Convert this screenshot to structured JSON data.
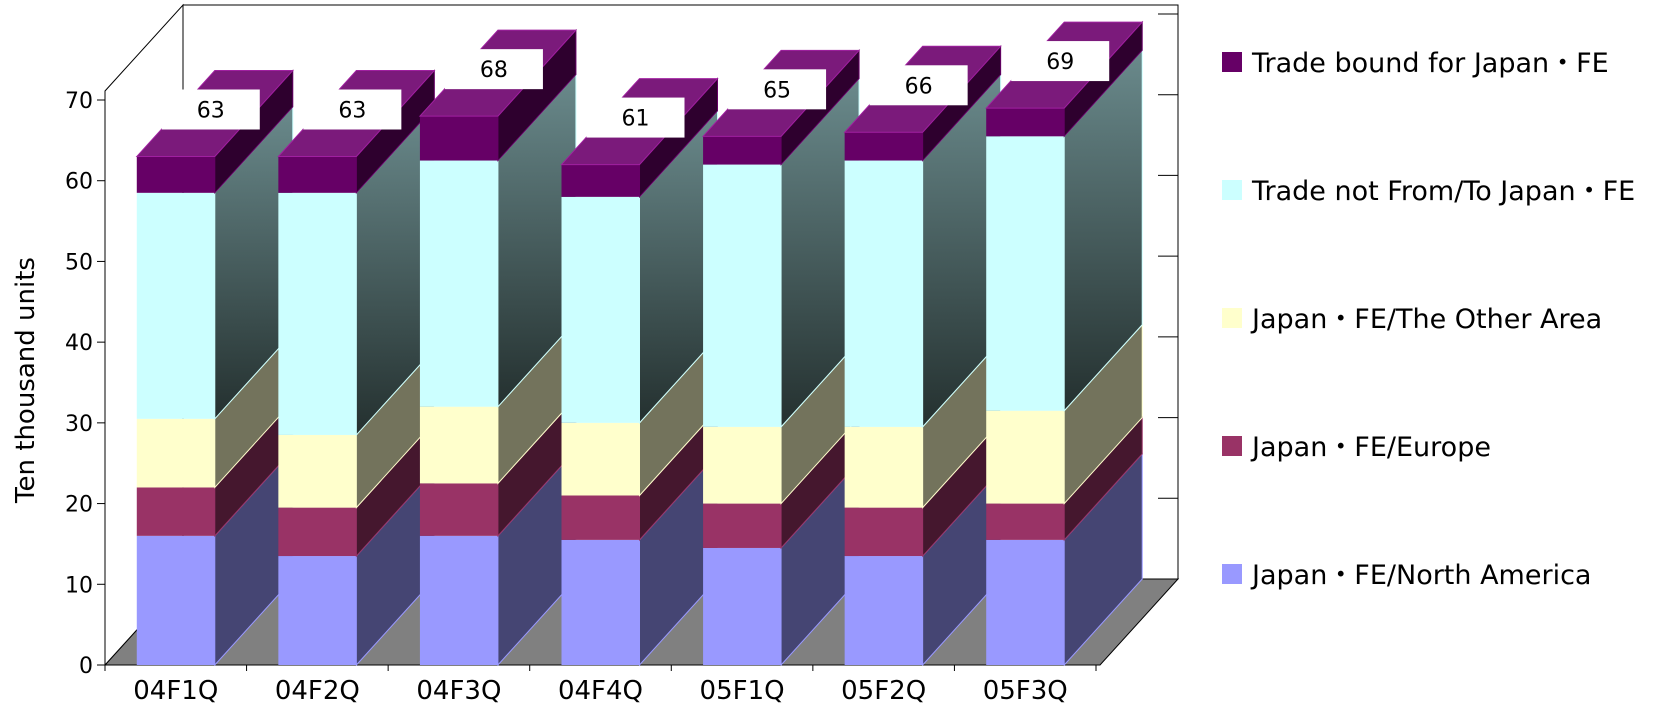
{
  "chart_data": {
    "type": "bar",
    "stacked": true,
    "three_d": true,
    "ylabel": "Ten thousand units",
    "ylim": [
      0,
      70
    ],
    "yticks": [
      0,
      10,
      20,
      30,
      40,
      50,
      60,
      70
    ],
    "categories": [
      "04F1Q",
      "04F2Q",
      "04F3Q",
      "04F4Q",
      "05F1Q",
      "05F2Q",
      "05F3Q"
    ],
    "series": [
      {
        "name": "Japan・FE/North America",
        "color": "#9999ff",
        "values": [
          16,
          13.5,
          16,
          15.5,
          14.5,
          13.5,
          15.5
        ]
      },
      {
        "name": "Japan・FE/Europe",
        "color": "#993366",
        "values": [
          6,
          6,
          6.5,
          5.5,
          5.5,
          6,
          4.5
        ]
      },
      {
        "name": "Japan・FE/The Other Area",
        "color": "#ffffcc",
        "values": [
          8.5,
          9,
          9.5,
          9,
          9.5,
          10,
          11.5
        ]
      },
      {
        "name": "Trade not From/To Japan・FE",
        "color": "#ccffff",
        "values": [
          28,
          30,
          30.5,
          28,
          32.5,
          33,
          34
        ]
      },
      {
        "name": "Trade bound for Japan・FE",
        "color": "#660066",
        "values": [
          4.5,
          4.5,
          5.5,
          4,
          3.5,
          3.5,
          3.5
        ]
      }
    ],
    "totals": [
      63,
      63,
      68,
      61,
      65,
      66,
      69
    ],
    "legend_position": "right",
    "grid": false
  }
}
